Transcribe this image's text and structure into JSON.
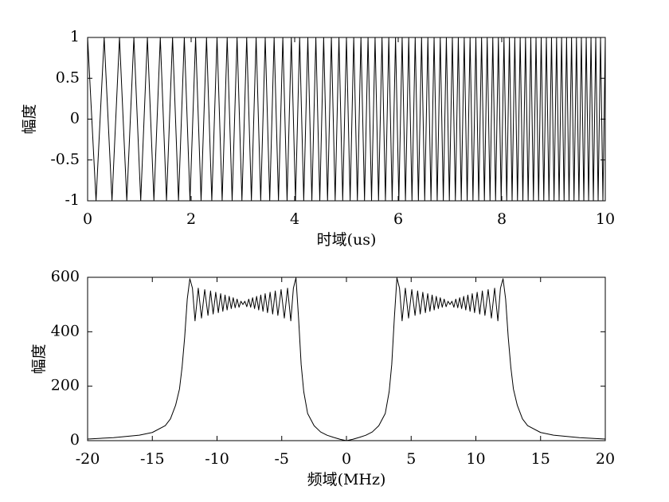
{
  "chart_data": [
    {
      "type": "line",
      "xlabel": "时域(us)",
      "ylabel": "幅度",
      "xlim": [
        0,
        10
      ],
      "ylim": [
        -1,
        1
      ],
      "xticks": [
        0,
        2,
        4,
        6,
        8,
        10
      ],
      "yticks": [
        -1,
        -0.5,
        0,
        0.5,
        1
      ],
      "x": [
        0,
        0.163,
        0.32,
        0.471,
        0.616,
        0.757,
        0.894,
        1.026,
        1.155,
        1.281,
        1.404,
        1.524,
        1.641,
        1.756,
        1.868,
        1.978,
        2.086,
        2.192,
        2.297,
        2.399,
        2.5,
        2.599,
        2.696,
        2.792,
        2.887,
        2.981,
        3.073,
        3.164,
        3.255,
        3.344,
        3.431,
        3.518,
        3.603,
        3.687,
        3.771,
        3.853,
        3.935,
        4.016,
        4.096,
        4.175,
        4.254,
        4.332,
        4.409,
        4.485,
        4.56,
        4.635,
        4.709,
        4.782,
        4.855,
        4.928,
        5.0,
        5.071,
        5.141,
        5.211,
        5.28,
        5.349,
        5.417,
        5.485,
        5.553,
        5.62,
        5.687,
        5.753,
        5.818,
        5.883,
        5.948,
        6.012,
        6.076,
        6.14,
        6.203,
        6.266,
        6.328,
        6.39,
        6.451,
        6.512,
        6.573,
        6.633,
        6.693,
        6.753,
        6.812,
        6.871,
        6.93,
        6.988,
        7.046,
        7.104,
        7.161,
        7.218,
        7.275,
        7.332,
        7.388,
        7.444,
        7.5,
        7.555,
        7.61,
        7.665,
        7.719,
        7.773,
        7.827,
        7.881,
        7.935,
        7.989,
        8.043,
        8.096,
        8.148,
        8.2,
        8.252,
        8.304,
        8.356,
        8.408,
        8.459,
        8.51,
        8.561,
        8.612,
        8.662,
        8.712,
        8.762,
        8.812,
        8.862,
        8.912,
        8.961,
        9.01,
        9.059,
        9.108,
        9.156,
        9.204,
        9.252,
        9.3,
        9.348,
        9.396,
        9.443,
        9.491,
        9.538,
        9.585,
        9.632,
        9.678,
        9.724,
        9.77,
        9.816,
        9.862,
        9.908,
        9.954,
        10.0
      ],
      "series": [
        {
          "color": "#000000",
          "values": [
            1,
            -1,
            1,
            -1,
            1,
            -1,
            1,
            -1,
            1,
            -1,
            1,
            -1,
            1,
            -1,
            1,
            -1,
            1,
            -1,
            1,
            -1,
            1,
            -1,
            1,
            -1,
            1,
            -1,
            1,
            -1,
            1,
            -1,
            1,
            -1,
            1,
            -1,
            1,
            -1,
            1,
            -1,
            1,
            -1,
            1,
            -1,
            1,
            -1,
            1,
            -1,
            1,
            -1,
            1,
            -1,
            1,
            -1,
            1,
            -1,
            1,
            -1,
            1,
            -1,
            1,
            -1,
            1,
            -1,
            1,
            -1,
            1,
            -1,
            1,
            -1,
            1,
            -1,
            1,
            -1,
            1,
            -1,
            1,
            -1,
            1,
            -1,
            1,
            -1,
            1,
            -1,
            1,
            -1,
            1,
            -1,
            1,
            -1,
            1,
            -1,
            1,
            -1,
            1,
            -1,
            1,
            -1,
            1,
            -1,
            1,
            -1,
            1,
            -1,
            1,
            -1,
            1,
            -1,
            1,
            -1,
            1,
            -1,
            1,
            -1,
            1,
            -1,
            1,
            -1,
            1,
            -1,
            1,
            -1,
            1,
            -1,
            1,
            -1,
            1,
            -1,
            1,
            -1,
            1,
            -1,
            1,
            -1,
            1,
            -1,
            1,
            -1,
            1,
            -1,
            1,
            -1,
            1
          ]
        }
      ]
    },
    {
      "type": "line",
      "xlabel": "频域(MHz)",
      "ylabel": "幅度",
      "xlim": [
        -20,
        20
      ],
      "ylim": [
        0,
        600
      ],
      "xticks": [
        -20,
        -15,
        -10,
        -5,
        0,
        5,
        10,
        15,
        20
      ],
      "yticks": [
        0,
        200,
        400,
        600
      ],
      "x": [
        -20,
        -18,
        -16,
        -15,
        -14,
        -13.6,
        -13.2,
        -12.9,
        -12.7,
        -12.5,
        -12.3,
        -12.1,
        -11.9,
        -11.7,
        -11.45,
        -11.2,
        -10.95,
        -10.7,
        -10.5,
        -10.3,
        -10.1,
        -9.9,
        -9.72,
        -9.55,
        -9.38,
        -9.22,
        -9.06,
        -8.9,
        -8.75,
        -8.6,
        -8.45,
        -8.3,
        -8.15,
        -8,
        -7.85,
        -7.7,
        -7.55,
        -7.4,
        -7.25,
        -7.1,
        -6.94,
        -6.78,
        -6.62,
        -6.45,
        -6.28,
        -6.1,
        -5.9,
        -5.7,
        -5.5,
        -5.3,
        -5.05,
        -4.8,
        -4.55,
        -4.3,
        -4.1,
        -3.9,
        -3.7,
        -3.5,
        -3.3,
        -3,
        -2.5,
        -2,
        -1.5,
        -1,
        -0.5,
        0,
        0.5,
        1,
        1.5,
        2,
        2.5,
        3,
        3.3,
        3.5,
        3.7,
        3.9,
        4.1,
        4.3,
        4.55,
        4.8,
        5.05,
        5.3,
        5.5,
        5.7,
        5.9,
        6.1,
        6.28,
        6.45,
        6.62,
        6.78,
        6.94,
        7.1,
        7.25,
        7.4,
        7.55,
        7.7,
        7.85,
        8,
        8.15,
        8.3,
        8.45,
        8.6,
        8.75,
        8.9,
        9.06,
        9.22,
        9.38,
        9.55,
        9.72,
        9.9,
        10.1,
        10.3,
        10.5,
        10.7,
        10.95,
        11.2,
        11.45,
        11.7,
        11.9,
        12.1,
        12.3,
        12.5,
        12.7,
        12.9,
        13.2,
        13.6,
        14,
        15,
        16,
        18,
        20
      ],
      "series": [
        {
          "color": "#000000",
          "values": [
            6,
            11,
            20,
            30,
            55,
            80,
            130,
            190,
            270,
            380,
            520,
            595,
            560,
            440,
            560,
            450,
            555,
            460,
            550,
            465,
            545,
            470,
            540,
            475,
            535,
            480,
            530,
            485,
            525,
            488,
            520,
            490,
            512,
            500,
            512,
            492,
            520,
            490,
            525,
            485,
            530,
            480,
            535,
            475,
            540,
            470,
            545,
            465,
            550,
            460,
            555,
            450,
            560,
            440,
            560,
            598,
            450,
            280,
            180,
            100,
            55,
            32,
            20,
            12,
            5,
            0,
            5,
            12,
            20,
            32,
            55,
            100,
            180,
            280,
            450,
            598,
            560,
            440,
            560,
            450,
            555,
            460,
            550,
            465,
            545,
            470,
            540,
            475,
            535,
            480,
            530,
            485,
            525,
            490,
            520,
            492,
            512,
            500,
            512,
            490,
            520,
            488,
            525,
            485,
            530,
            480,
            535,
            475,
            540,
            470,
            545,
            465,
            550,
            460,
            555,
            450,
            560,
            440,
            560,
            595,
            520,
            380,
            270,
            190,
            130,
            80,
            55,
            30,
            20,
            11,
            6
          ]
        }
      ]
    }
  ]
}
